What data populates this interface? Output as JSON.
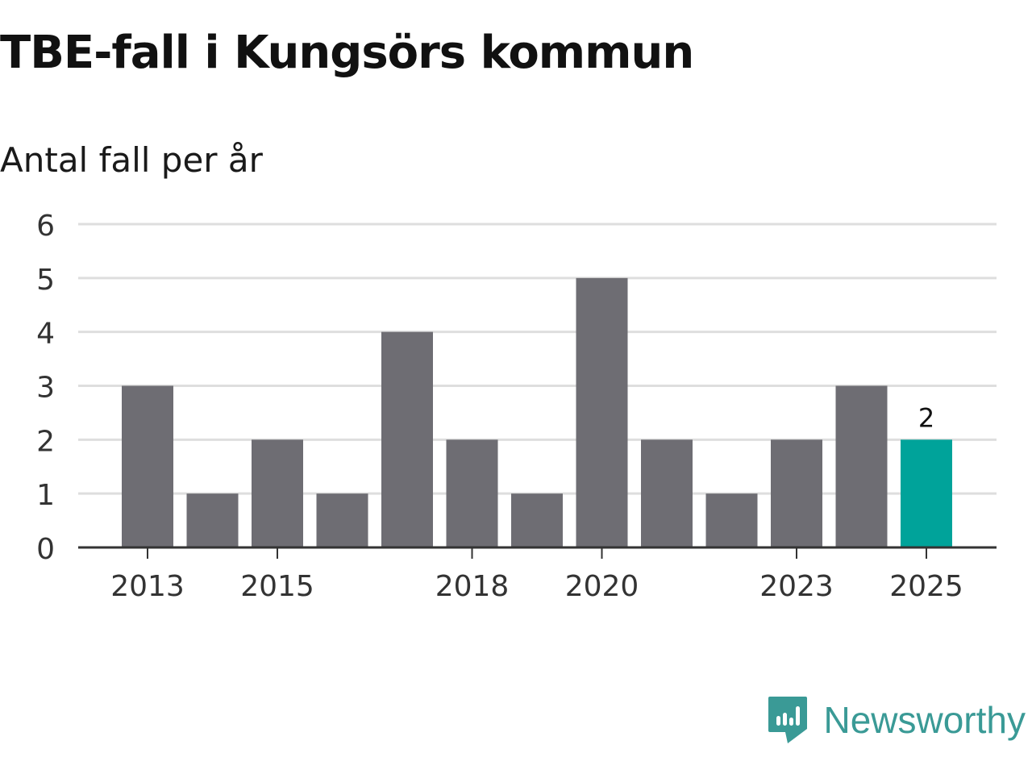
{
  "colors": {
    "bar": "#6e6d73",
    "highlight": "#00a39a",
    "grid": "#dedede",
    "axis": "#333333",
    "brand": "#3a9a96"
  },
  "brand": {
    "name": "Newsworthy",
    "icon": "newsworthy-logo-icon"
  },
  "chart_data": {
    "type": "bar",
    "title": "TBE-fall i Kungsörs kommun",
    "subtitle": "Antal fall per år",
    "xlabel": "",
    "ylabel": "",
    "categories": [
      "2013",
      "2014",
      "2015",
      "2016",
      "2017",
      "2018",
      "2019",
      "2020",
      "2021",
      "2022",
      "2023",
      "2024",
      "2025"
    ],
    "values": [
      3,
      1,
      2,
      1,
      4,
      2,
      1,
      5,
      2,
      1,
      2,
      3,
      2
    ],
    "highlight_index": 12,
    "highlight_label": "2",
    "x_tick_labels": [
      "2013",
      "2015",
      "2018",
      "2020",
      "2023",
      "2025"
    ],
    "y_ticks": [
      0,
      1,
      2,
      3,
      4,
      5,
      6
    ],
    "ylim": [
      0,
      6
    ],
    "grid": true
  }
}
